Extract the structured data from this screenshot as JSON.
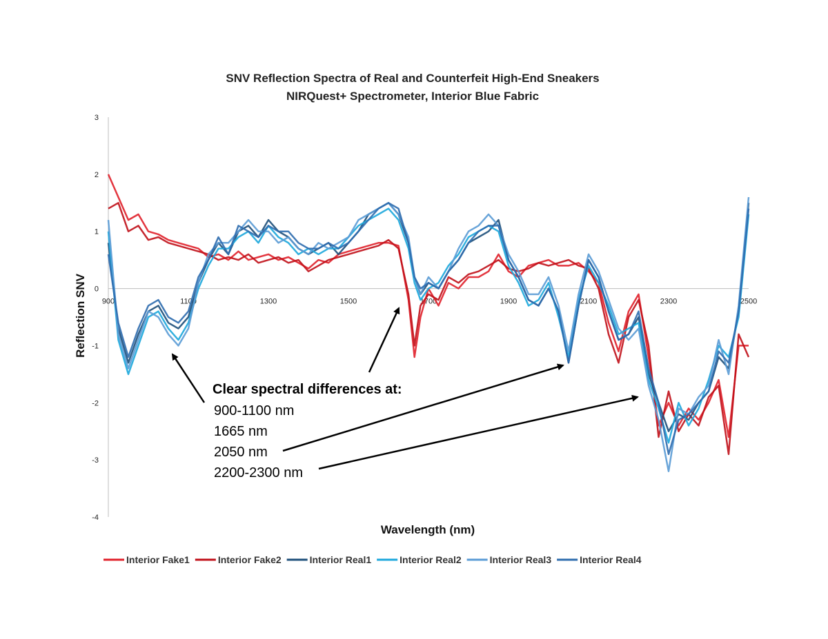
{
  "chart_data": {
    "type": "line",
    "title": "SNV Reflection Spectra of Real and Counterfeit High-End Sneakers",
    "subtitle": "NIRQuest+ Spectrometer, Interior Blue Fabric",
    "xlabel": "Wavelength (nm)",
    "ylabel": "Reflection SNV",
    "xlim": [
      900,
      2500
    ],
    "ylim": [
      -4,
      3
    ],
    "x_ticks": [
      "900",
      "1100",
      "1300",
      "1500",
      "1700",
      "1900",
      "2100",
      "2300",
      "2500"
    ],
    "y_ticks": [
      "3",
      "2",
      "1",
      "0",
      "-1",
      "-2",
      "-3",
      "-4"
    ],
    "grid": false,
    "legend_position": "bottom",
    "x": [
      900,
      925,
      950,
      975,
      1000,
      1025,
      1050,
      1075,
      1100,
      1125,
      1150,
      1175,
      1200,
      1225,
      1250,
      1275,
      1300,
      1325,
      1350,
      1375,
      1400,
      1425,
      1450,
      1475,
      1500,
      1525,
      1550,
      1575,
      1600,
      1625,
      1650,
      1665,
      1680,
      1700,
      1725,
      1750,
      1775,
      1800,
      1825,
      1850,
      1875,
      1900,
      1925,
      1950,
      1975,
      2000,
      2025,
      2050,
      2075,
      2100,
      2125,
      2150,
      2175,
      2200,
      2225,
      2250,
      2275,
      2300,
      2325,
      2350,
      2375,
      2400,
      2425,
      2450,
      2475,
      2500
    ],
    "series": [
      {
        "name": "Interior Fake1",
        "color": "#e0202a",
        "values": [
          2.0,
          1.6,
          1.2,
          1.3,
          1.0,
          0.95,
          0.85,
          0.8,
          0.75,
          0.7,
          0.55,
          0.6,
          0.5,
          0.65,
          0.5,
          0.55,
          0.6,
          0.5,
          0.55,
          0.45,
          0.35,
          0.5,
          0.45,
          0.6,
          0.65,
          0.7,
          0.75,
          0.8,
          0.8,
          0.75,
          -0.2,
          -1.2,
          -0.5,
          0.0,
          -0.3,
          0.1,
          0.0,
          0.2,
          0.2,
          0.3,
          0.6,
          0.3,
          0.2,
          0.4,
          0.45,
          0.5,
          0.4,
          0.4,
          0.45,
          0.3,
          0.1,
          -0.6,
          -1.1,
          -0.4,
          -0.1,
          -1.2,
          -2.4,
          -2.0,
          -2.4,
          -2.1,
          -2.3,
          -2.0,
          -1.6,
          -2.6,
          -1.0,
          -1.0
        ]
      },
      {
        "name": "Interior Fake2",
        "color": "#c00f18",
        "values": [
          1.4,
          1.5,
          1.0,
          1.1,
          0.85,
          0.9,
          0.8,
          0.75,
          0.7,
          0.65,
          0.6,
          0.5,
          0.55,
          0.5,
          0.6,
          0.45,
          0.5,
          0.55,
          0.45,
          0.5,
          0.3,
          0.4,
          0.5,
          0.55,
          0.6,
          0.65,
          0.7,
          0.75,
          0.85,
          0.7,
          -0.1,
          -1.0,
          -0.3,
          -0.1,
          -0.2,
          0.2,
          0.1,
          0.25,
          0.3,
          0.4,
          0.5,
          0.35,
          0.3,
          0.35,
          0.45,
          0.4,
          0.45,
          0.5,
          0.4,
          0.35,
          0.0,
          -0.8,
          -1.3,
          -0.5,
          -0.2,
          -1.0,
          -2.6,
          -1.8,
          -2.5,
          -2.2,
          -2.4,
          -1.9,
          -1.7,
          -2.9,
          -0.8,
          -1.2
        ]
      },
      {
        "name": "Interior Real1",
        "color": "#1d4f7a",
        "values": [
          0.8,
          -0.7,
          -1.3,
          -0.8,
          -0.4,
          -0.3,
          -0.6,
          -0.7,
          -0.5,
          0.1,
          0.5,
          0.8,
          0.6,
          1.0,
          1.1,
          0.9,
          1.2,
          1.0,
          0.9,
          0.7,
          0.6,
          0.7,
          0.8,
          0.6,
          0.8,
          1.0,
          1.3,
          1.4,
          1.5,
          1.3,
          0.8,
          0.2,
          -0.1,
          0.1,
          0.0,
          0.3,
          0.5,
          0.8,
          0.9,
          1.0,
          1.2,
          0.5,
          0.2,
          -0.2,
          -0.3,
          0.0,
          -0.4,
          -1.3,
          -0.3,
          0.5,
          0.2,
          -0.4,
          -0.9,
          -0.8,
          -0.5,
          -1.5,
          -2.0,
          -2.5,
          -2.2,
          -2.3,
          -2.0,
          -1.8,
          -1.2,
          -1.4,
          -0.4,
          1.5
        ]
      },
      {
        "name": "Interior Real2",
        "color": "#1ca7dc",
        "values": [
          1.0,
          -0.9,
          -1.5,
          -1.0,
          -0.5,
          -0.4,
          -0.7,
          -0.9,
          -0.6,
          0.0,
          0.4,
          0.7,
          0.7,
          0.9,
          1.0,
          0.8,
          1.1,
          0.9,
          0.8,
          0.6,
          0.7,
          0.6,
          0.7,
          0.7,
          0.9,
          1.1,
          1.2,
          1.3,
          1.4,
          1.2,
          0.7,
          0.1,
          -0.2,
          0.0,
          0.1,
          0.4,
          0.6,
          0.9,
          1.0,
          1.1,
          1.0,
          0.4,
          0.1,
          -0.3,
          -0.2,
          0.1,
          -0.5,
          -1.2,
          -0.2,
          0.4,
          0.1,
          -0.3,
          -0.8,
          -0.7,
          -0.6,
          -1.6,
          -2.1,
          -2.7,
          -2.0,
          -2.4,
          -2.1,
          -1.6,
          -1.0,
          -1.2,
          -0.5,
          1.3
        ]
      },
      {
        "name": "Interior Real3",
        "color": "#5a9bd5",
        "values": [
          1.2,
          -0.8,
          -1.4,
          -0.9,
          -0.4,
          -0.5,
          -0.8,
          -1.0,
          -0.7,
          0.1,
          0.6,
          0.8,
          0.8,
          1.0,
          1.2,
          1.0,
          1.0,
          0.8,
          0.9,
          0.7,
          0.6,
          0.8,
          0.7,
          0.8,
          0.9,
          1.2,
          1.3,
          1.4,
          1.5,
          1.3,
          0.9,
          0.2,
          -0.1,
          0.2,
          0.0,
          0.3,
          0.7,
          1.0,
          1.1,
          1.3,
          1.1,
          0.6,
          0.3,
          -0.1,
          -0.1,
          0.2,
          -0.3,
          -1.1,
          -0.1,
          0.6,
          0.3,
          -0.2,
          -0.7,
          -0.9,
          -0.7,
          -1.7,
          -2.3,
          -3.2,
          -2.1,
          -2.2,
          -1.9,
          -1.7,
          -0.9,
          -1.5,
          -0.3,
          1.6
        ]
      },
      {
        "name": "Interior Real4",
        "color": "#2e6cae",
        "values": [
          0.6,
          -0.6,
          -1.2,
          -0.7,
          -0.3,
          -0.2,
          -0.5,
          -0.6,
          -0.4,
          0.2,
          0.5,
          0.9,
          0.6,
          1.1,
          1.0,
          0.9,
          1.1,
          1.0,
          1.0,
          0.8,
          0.7,
          0.7,
          0.8,
          0.7,
          0.8,
          1.0,
          1.2,
          1.4,
          1.5,
          1.4,
          0.8,
          0.2,
          0.0,
          0.1,
          0.0,
          0.3,
          0.5,
          0.8,
          1.0,
          1.1,
          1.1,
          0.5,
          0.2,
          -0.2,
          -0.3,
          0.0,
          -0.4,
          -1.3,
          -0.3,
          0.5,
          0.2,
          -0.4,
          -0.9,
          -0.8,
          -0.4,
          -1.4,
          -2.0,
          -2.9,
          -2.3,
          -2.2,
          -2.0,
          -1.8,
          -1.1,
          -1.3,
          -0.4,
          1.4
        ]
      }
    ],
    "annotations": {
      "heading": "Clear spectral differences at:",
      "items": [
        "900-1100 nm",
        "1665 nm",
        "2050 nm",
        "2200-2300 nm"
      ]
    }
  }
}
